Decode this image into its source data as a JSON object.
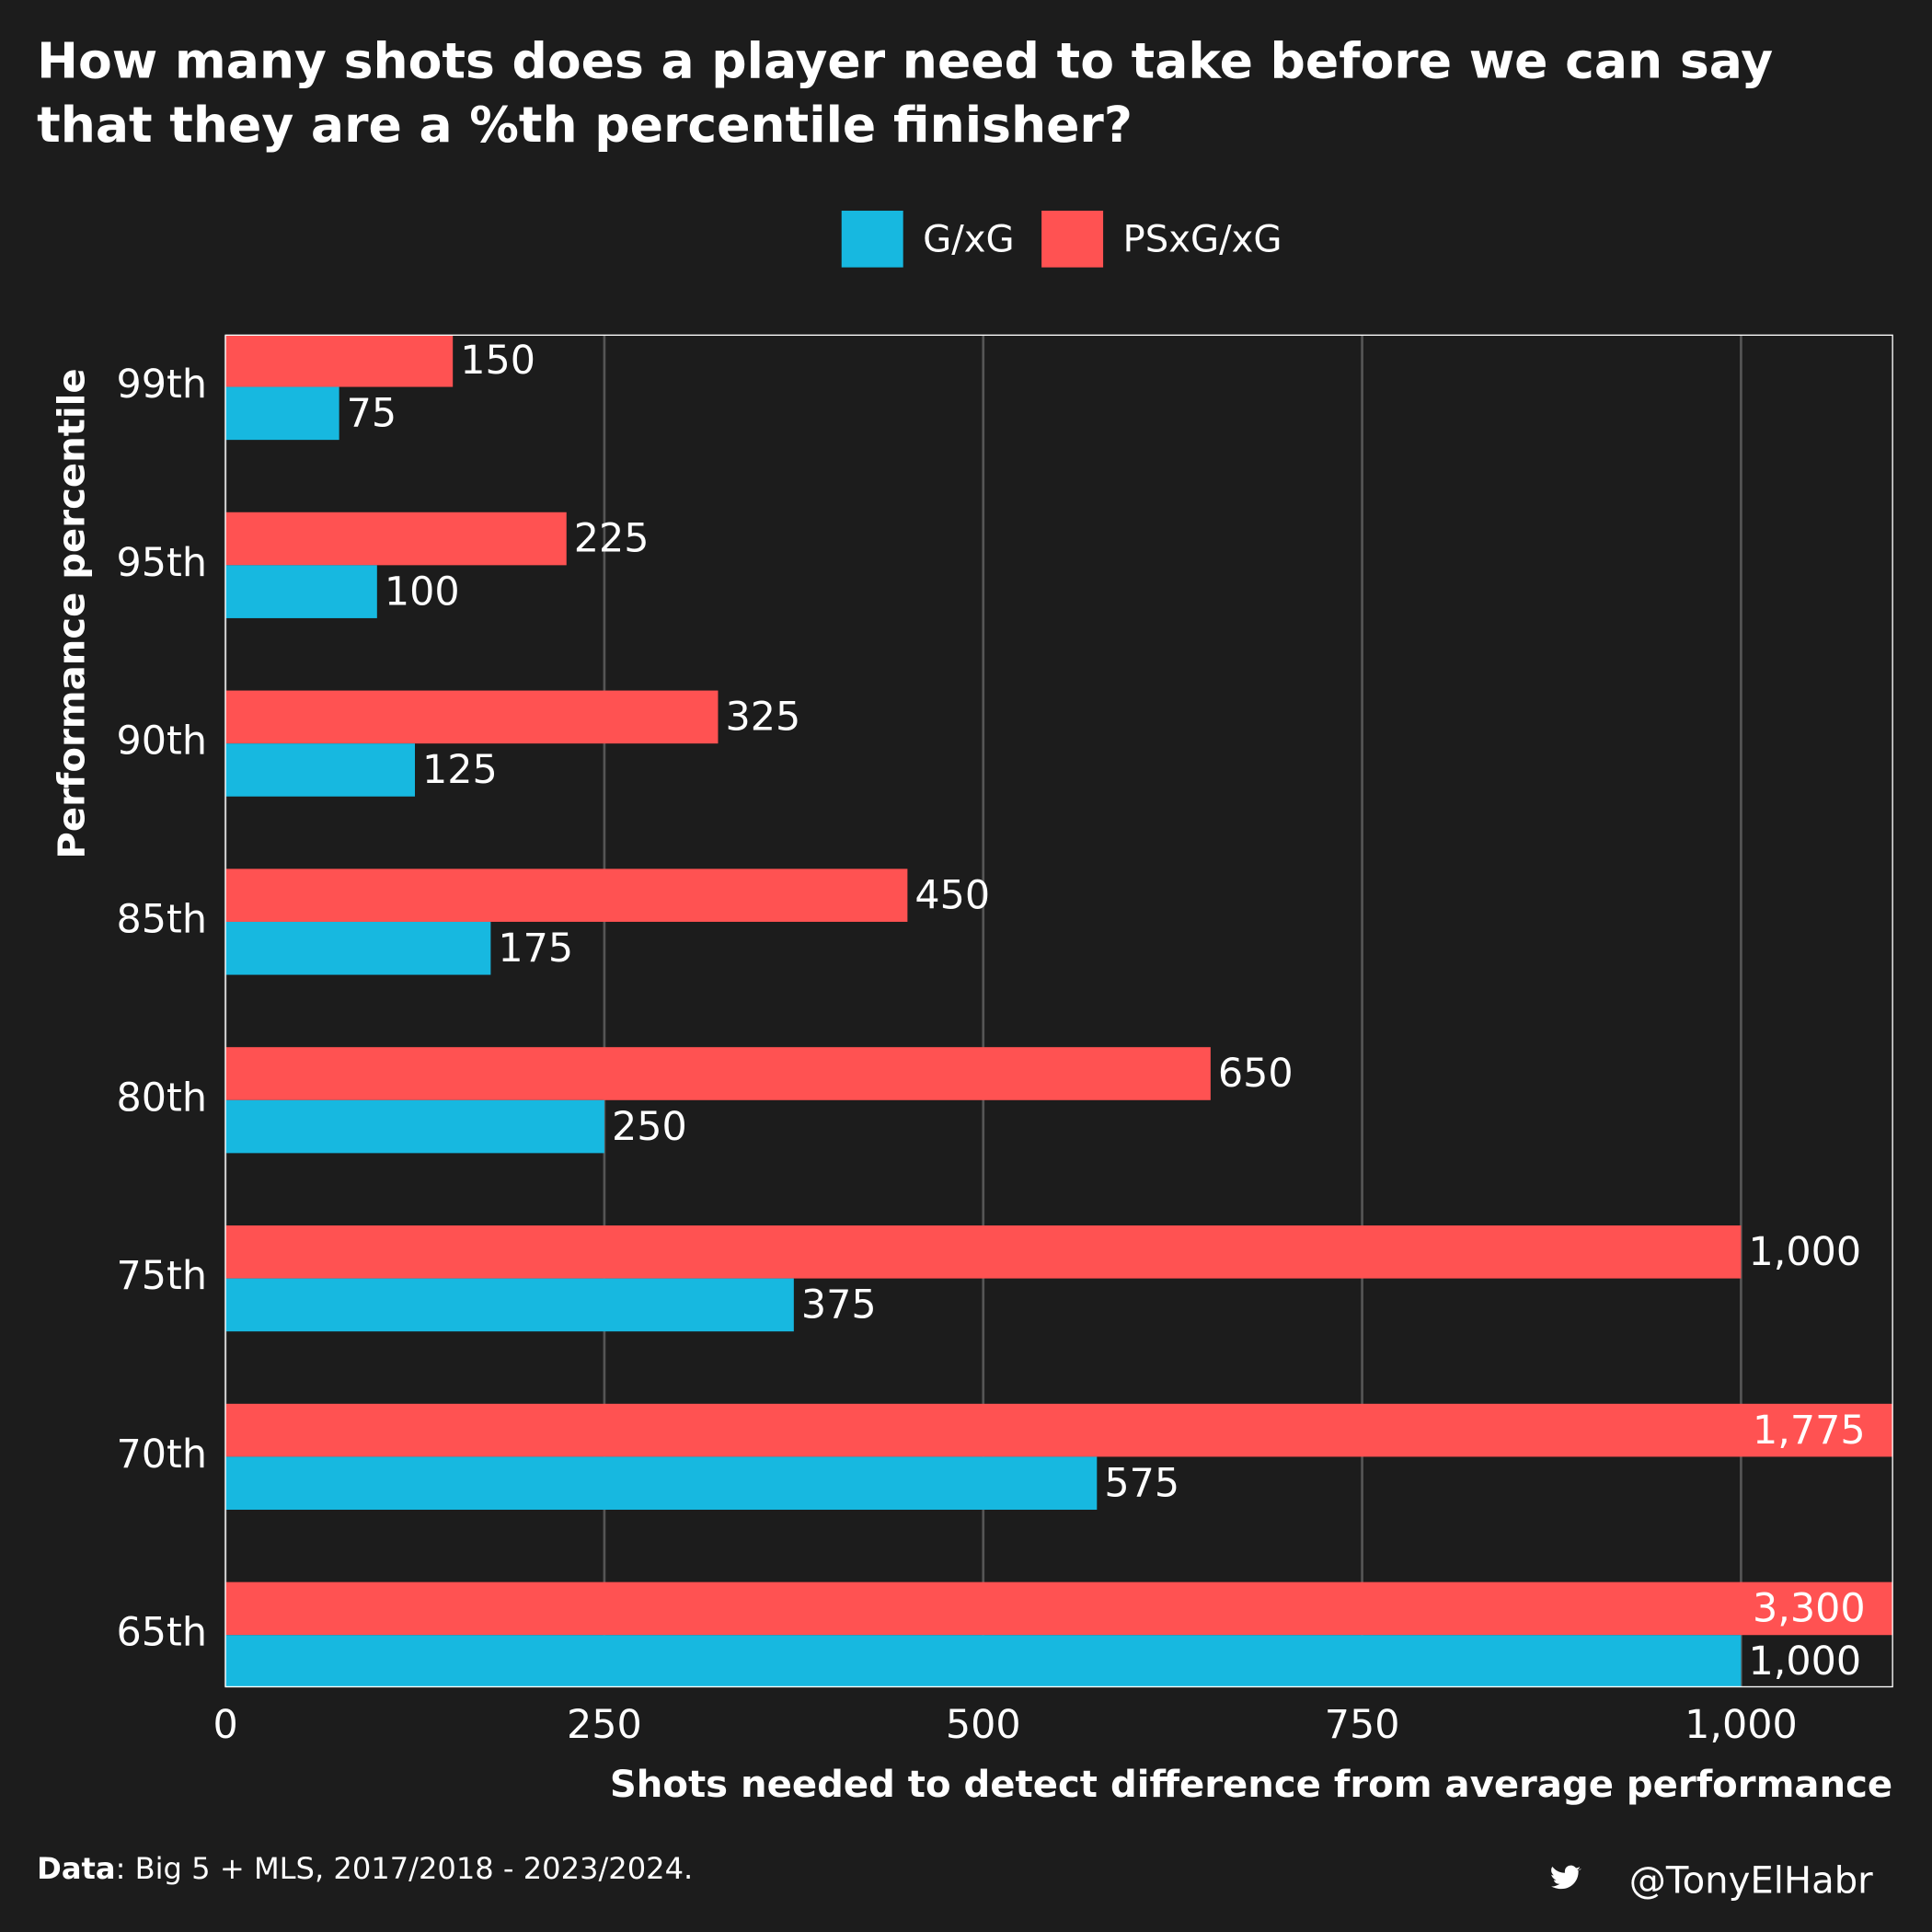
{
  "chart_data": {
    "type": "bar",
    "orientation": "horizontal",
    "title": "How many shots does a player need to take before we can say that they are a %th percentile finisher?",
    "title_lines": [
      "How many shots does a player need to take before we can say",
      "that they are a %th percentile finisher?"
    ],
    "x_label": "Shots needed to detect difference from average performance",
    "y_label": "Performance percentile",
    "categories": [
      "99th",
      "95th",
      "90th",
      "85th",
      "80th",
      "75th",
      "70th",
      "65th"
    ],
    "series": [
      {
        "name": "PSxG/xG",
        "color": "#ff5252",
        "values": [
          150,
          225,
          325,
          450,
          650,
          1000,
          1775,
          3300
        ],
        "value_labels": [
          "150",
          "225",
          "325",
          "450",
          "650",
          "1,000",
          "1,775",
          "3,300"
        ]
      },
      {
        "name": "G/xG",
        "color": "#17b8e0",
        "values": [
          75,
          100,
          125,
          175,
          250,
          375,
          575,
          1000
        ],
        "value_labels": [
          "75",
          "100",
          "125",
          "175",
          "250",
          "375",
          "575",
          "1,000"
        ]
      }
    ],
    "legend_order": [
      1,
      0
    ],
    "xlim": [
      0,
      1100
    ],
    "xticks": [
      0,
      250,
      500,
      750,
      {
        "value": 1000,
        "label": "1,000"
      }
    ],
    "grid": true,
    "legend_position": "top",
    "caption_label": "Data",
    "caption_text": ": Big 5 + MLS, 2017/2018 - 2023/2024.",
    "handle": "@TonyElHabr"
  }
}
